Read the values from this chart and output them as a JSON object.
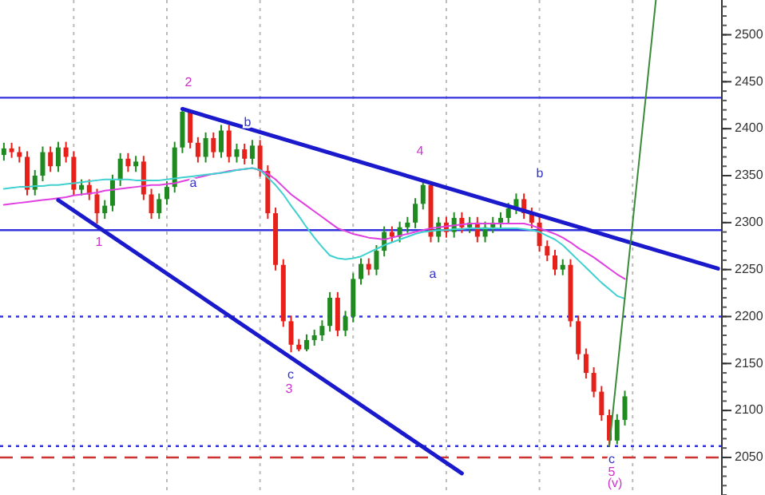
{
  "chart_data": {
    "type": "candlestick",
    "categories": [
      null,
      null,
      null,
      null,
      null,
      null,
      null,
      null,
      null,
      null,
      null,
      null,
      null,
      null,
      null,
      null,
      null,
      null,
      null,
      null,
      null,
      null,
      null,
      null,
      null,
      null,
      null,
      null,
      null,
      null,
      null,
      null,
      null,
      null,
      null,
      null,
      null,
      null,
      null,
      null,
      null,
      null,
      null,
      null,
      null,
      null,
      null,
      null,
      null,
      null,
      null,
      null,
      null,
      null,
      null,
      null,
      null,
      null,
      null,
      null,
      null,
      null,
      null,
      null,
      null,
      null,
      null,
      null,
      null,
      null,
      null,
      null,
      null,
      null,
      null,
      null,
      null,
      null,
      null,
      null,
      null,
      null,
      null,
      null,
      null,
      null,
      null,
      null,
      null,
      null,
      null,
      null,
      null
    ],
    "ohlc": [
      [
        2372,
        2385,
        2366,
        2379
      ],
      [
        2379,
        2385,
        2369,
        2375
      ],
      [
        2375,
        2381,
        2364,
        2370
      ],
      [
        2370,
        2376,
        2329,
        2335
      ],
      [
        2335,
        2356,
        2329,
        2350
      ],
      [
        2350,
        2381,
        2344,
        2375
      ],
      [
        2375,
        2381,
        2354,
        2360
      ],
      [
        2360,
        2386,
        2354,
        2380
      ],
      [
        2380,
        2386,
        2364,
        2370
      ],
      [
        2370,
        2376,
        2329,
        2335
      ],
      [
        2335,
        2346,
        2329,
        2340
      ],
      [
        2340,
        2346,
        2324,
        2330
      ],
      [
        2330,
        2336,
        2299,
        2310
      ],
      [
        2310,
        2324,
        2304,
        2318
      ],
      [
        2318,
        2351,
        2312,
        2345
      ],
      [
        2345,
        2374,
        2339,
        2368
      ],
      [
        2368,
        2374,
        2354,
        2360
      ],
      [
        2360,
        2371,
        2354,
        2365
      ],
      [
        2365,
        2371,
        2324,
        2330
      ],
      [
        2330,
        2336,
        2304,
        2310
      ],
      [
        2310,
        2331,
        2304,
        2325
      ],
      [
        2325,
        2344,
        2319,
        2338
      ],
      [
        2338,
        2386,
        2332,
        2380
      ],
      [
        2380,
        2421,
        2374,
        2418
      ],
      [
        2418,
        2420,
        2379,
        2385
      ],
      [
        2385,
        2391,
        2364,
        2370
      ],
      [
        2370,
        2396,
        2364,
        2390
      ],
      [
        2390,
        2396,
        2369,
        2375
      ],
      [
        2375,
        2404,
        2369,
        2398
      ],
      [
        2398,
        2404,
        2364,
        2370
      ],
      [
        2370,
        2384,
        2364,
        2378
      ],
      [
        2378,
        2384,
        2362,
        2368
      ],
      [
        2368,
        2388,
        2362,
        2382
      ],
      [
        2382,
        2388,
        2349,
        2355
      ],
      [
        2355,
        2361,
        2304,
        2310
      ],
      [
        2310,
        2316,
        2249,
        2255
      ],
      [
        2255,
        2261,
        2189,
        2195
      ],
      [
        2195,
        2201,
        2162,
        2170
      ],
      [
        2170,
        2176,
        2163,
        2165
      ],
      [
        2165,
        2181,
        2163,
        2175
      ],
      [
        2175,
        2186,
        2169,
        2180
      ],
      [
        2180,
        2196,
        2174,
        2190
      ],
      [
        2190,
        2226,
        2184,
        2220
      ],
      [
        2220,
        2226,
        2179,
        2185
      ],
      [
        2185,
        2206,
        2179,
        2200
      ],
      [
        2200,
        2246,
        2194,
        2240
      ],
      [
        2240,
        2262,
        2234,
        2256
      ],
      [
        2256,
        2262,
        2244,
        2250
      ],
      [
        2250,
        2276,
        2244,
        2270
      ],
      [
        2270,
        2296,
        2264,
        2290
      ],
      [
        2290,
        2296,
        2279,
        2285
      ],
      [
        2285,
        2301,
        2279,
        2295
      ],
      [
        2295,
        2306,
        2289,
        2300
      ],
      [
        2300,
        2326,
        2294,
        2320
      ],
      [
        2320,
        2345,
        2314,
        2340
      ],
      [
        2340,
        2344,
        2279,
        2285
      ],
      [
        2285,
        2306,
        2279,
        2300
      ],
      [
        2300,
        2306,
        2284,
        2290
      ],
      [
        2290,
        2311,
        2284,
        2305
      ],
      [
        2305,
        2311,
        2289,
        2295
      ],
      [
        2295,
        2306,
        2289,
        2300
      ],
      [
        2300,
        2306,
        2279,
        2285
      ],
      [
        2285,
        2301,
        2279,
        2295
      ],
      [
        2295,
        2306,
        2289,
        2300
      ],
      [
        2300,
        2311,
        2294,
        2305
      ],
      [
        2305,
        2321,
        2299,
        2315
      ],
      [
        2315,
        2331,
        2309,
        2325
      ],
      [
        2325,
        2331,
        2304,
        2310
      ],
      [
        2310,
        2316,
        2294,
        2300
      ],
      [
        2300,
        2306,
        2269,
        2275
      ],
      [
        2275,
        2281,
        2259,
        2265
      ],
      [
        2265,
        2271,
        2244,
        2250
      ],
      [
        2250,
        2261,
        2244,
        2255
      ],
      [
        2255,
        2261,
        2189,
        2195
      ],
      [
        2195,
        2201,
        2154,
        2160
      ],
      [
        2160,
        2166,
        2134,
        2140
      ],
      [
        2140,
        2146,
        2114,
        2120
      ],
      [
        2120,
        2126,
        2089,
        2095
      ],
      [
        2095,
        2101,
        2062,
        2068
      ],
      [
        2068,
        2096,
        2064,
        2090
      ],
      [
        2090,
        2121,
        2084,
        2115
      ],
      null,
      null,
      null,
      null,
      null,
      null,
      null,
      null,
      null,
      null,
      null,
      null
    ],
    "series": [
      {
        "type": "line",
        "color": "#e040e0",
        "values": [
          2319,
          2320,
          2321,
          2322,
          2323,
          2324,
          2325,
          2326,
          2327,
          2329,
          2330,
          2331,
          2332,
          2334,
          2335,
          2336,
          2337,
          2338,
          2339,
          2340,
          2340,
          2341,
          2342,
          2344,
          2346,
          2348,
          2350,
          2352,
          2353,
          2355,
          2356,
          2357,
          2358,
          2356,
          2352,
          2346,
          2338,
          2330,
          2324,
          2318,
          2312,
          2306,
          2300,
          2294,
          2291,
          2288,
          2286,
          2284,
          2283,
          2282,
          2284,
          2286,
          2288,
          2290,
          2292,
          2294,
          2295,
          2296,
          2297,
          2298,
          2299,
          2299,
          2299,
          2299,
          2299,
          2299,
          2299,
          2299,
          2297,
          2294,
          2291,
          2288,
          2284,
          2279,
          2273,
          2268,
          2263,
          2257,
          2251,
          2245,
          2240,
          null,
          null,
          null,
          null,
          null,
          null,
          null,
          null,
          null,
          null,
          null,
          null
        ]
      },
      {
        "type": "line",
        "color": "#40d0d0",
        "values": [
          2336,
          2337,
          2338,
          2338,
          2339,
          2339,
          2340,
          2340,
          2341,
          2342,
          2343,
          2344,
          2345,
          2346,
          2346,
          2346,
          2346,
          2345,
          2345,
          2345,
          2345,
          2346,
          2347,
          2348,
          2349,
          2350,
          2351,
          2352,
          2353,
          2354,
          2356,
          2357,
          2358,
          2356,
          2348,
          2340,
          2330,
          2318,
          2307,
          2295,
          2284,
          2274,
          2265,
          2262,
          2261,
          2262,
          2264,
          2268,
          2272,
          2276,
          2279,
          2282,
          2285,
          2288,
          2290,
          2291,
          2292,
          2292,
          2293,
          2293,
          2294,
          2294,
          2294,
          2294,
          2294,
          2294,
          2294,
          2293,
          2292,
          2290,
          2286,
          2282,
          2276,
          2268,
          2260,
          2252,
          2244,
          2236,
          2229,
          2222,
          2219,
          null,
          null,
          null,
          null,
          null,
          null,
          null,
          null,
          null,
          null,
          null,
          null
        ]
      },
      {
        "type": "line",
        "color": "#1a1acc",
        "values": [
          null,
          null,
          null,
          null,
          null,
          null,
          null,
          null,
          null,
          null,
          null,
          null,
          null,
          null,
          null,
          null,
          null,
          null,
          null,
          null,
          null,
          null,
          null,
          2421,
          null,
          null,
          null,
          null,
          null,
          null,
          null,
          null,
          null,
          null,
          null,
          null,
          null,
          null,
          null,
          null,
          null,
          null,
          null,
          null,
          null,
          null,
          null,
          null,
          null,
          null,
          null,
          null,
          null,
          null,
          null,
          null,
          null,
          null,
          null,
          null,
          null,
          null,
          null,
          null,
          null,
          null,
          null,
          null,
          null,
          null,
          null,
          null,
          null,
          null,
          null,
          null,
          null,
          null,
          null,
          null,
          null,
          null,
          null,
          null,
          null,
          null,
          null,
          null,
          null,
          null,
          null,
          null,
          2251
        ]
      },
      {
        "type": "line",
        "color": "#1a1acc",
        "values": [
          null,
          null,
          null,
          null,
          null,
          null,
          null,
          2324,
          null,
          null,
          null,
          null,
          null,
          null,
          null,
          null,
          null,
          null,
          null,
          null,
          null,
          null,
          null,
          null,
          null,
          null,
          null,
          null,
          null,
          null,
          null,
          null,
          null,
          null,
          null,
          null,
          null,
          null,
          null,
          null,
          null,
          null,
          null,
          null,
          null,
          null,
          null,
          null,
          null,
          null,
          null,
          null,
          null,
          null,
          null,
          null,
          null,
          null,
          null,
          2033,
          null,
          null,
          null,
          null,
          null,
          null,
          null,
          null,
          null,
          null,
          null,
          null,
          null,
          null,
          null,
          null,
          null,
          null,
          null,
          null,
          null,
          null,
          null,
          null,
          null,
          null,
          null,
          null,
          null,
          null,
          null,
          null,
          null
        ]
      },
      {
        "type": "line",
        "color": "#3a8a3a",
        "values": [
          null,
          null,
          null,
          null,
          null,
          null,
          null,
          null,
          null,
          null,
          null,
          null,
          null,
          null,
          null,
          null,
          null,
          null,
          null,
          null,
          null,
          null,
          null,
          null,
          null,
          null,
          null,
          null,
          null,
          null,
          null,
          null,
          null,
          null,
          null,
          null,
          null,
          null,
          null,
          null,
          null,
          null,
          null,
          null,
          null,
          null,
          null,
          null,
          null,
          null,
          null,
          null,
          null,
          null,
          null,
          null,
          null,
          null,
          null,
          null,
          null,
          null,
          null,
          null,
          null,
          null,
          null,
          null,
          null,
          null,
          null,
          null,
          null,
          null,
          null,
          null,
          null,
          null,
          2062,
          null,
          null,
          null,
          null,
          null,
          2537,
          null,
          null,
          null,
          null,
          null,
          null,
          null,
          null
        ]
      }
    ],
    "ylim": [
      2010,
      2537
    ],
    "yticks": [
      2050,
      2100,
      2150,
      2200,
      2250,
      2300,
      2350,
      2400,
      2450,
      2500
    ],
    "grid": "x",
    "tick_labels": "y",
    "ref_lines": [
      {
        "axis": "y",
        "value": 2433,
        "color": "#3333dd",
        "line_style": "solid"
      },
      {
        "axis": "y",
        "value": 2292,
        "color": "#3333dd",
        "line_style": "solid"
      },
      {
        "axis": "y",
        "value": 2200,
        "color": "#3333dd",
        "line_style": "dotted"
      },
      {
        "axis": "y",
        "value": 2062,
        "color": "#3333dd",
        "line_style": "dotted"
      },
      {
        "axis": "y",
        "value": 2050,
        "color": "#cc3333",
        "line_style": "dashed"
      }
    ],
    "annotations": [
      "1",
      "2",
      "3",
      "4",
      "5",
      "a",
      "b",
      "c",
      "a",
      "b",
      "c",
      "(v)"
    ]
  }
}
